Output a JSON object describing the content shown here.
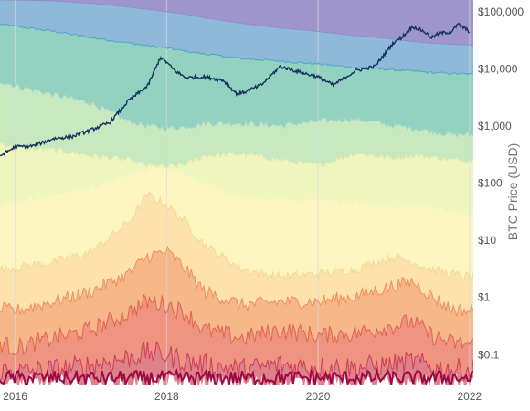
{
  "chart_data": {
    "type": "area",
    "title": "",
    "xlabel": "",
    "ylabel": "BTC Price (USD)",
    "y_scale": "log",
    "ylim": [
      0.03,
      160000
    ],
    "xlim": [
      2015.8,
      2022.05
    ],
    "grid": true,
    "legend": "none",
    "x_ticks": [
      {
        "value": 2016,
        "label": "2016"
      },
      {
        "value": 2018,
        "label": "2018"
      },
      {
        "value": 2020,
        "label": "2020"
      },
      {
        "value": 2022,
        "label": "2022"
      }
    ],
    "y_ticks": [
      {
        "value": 100000,
        "label": "$100,000"
      },
      {
        "value": 10000,
        "label": "$10,000"
      },
      {
        "value": 1000,
        "label": "$1,000"
      },
      {
        "value": 100,
        "label": "$100"
      },
      {
        "value": 10,
        "label": "$10"
      },
      {
        "value": 1,
        "label": "$1"
      },
      {
        "value": 0.1,
        "label": "$0.1"
      }
    ],
    "band_x": [
      2015.8,
      2016.0,
      2016.5,
      2017.0,
      2017.5,
      2017.75,
      2018.0,
      2018.25,
      2018.5,
      2019.0,
      2019.5,
      2020.0,
      2020.5,
      2021.0,
      2021.25,
      2021.5,
      2021.75,
      2022.0,
      2022.05
    ],
    "bands": [
      {
        "color": "#9e95cc",
        "upper": [
          160000,
          160000,
          160000,
          160000,
          160000,
          160000,
          160000,
          160000,
          160000,
          160000,
          160000,
          160000,
          160000,
          160000,
          160000,
          160000,
          160000,
          160000,
          160000
        ],
        "lower": [
          160000,
          160000,
          155000,
          140000,
          120000,
          110000,
          100000,
          90000,
          78000,
          62000,
          52000,
          45000,
          38000,
          33000,
          30000,
          28000,
          27000,
          26000,
          25500
        ]
      },
      {
        "color": "#8fb9d8",
        "upper": [
          160000,
          160000,
          155000,
          140000,
          120000,
          110000,
          100000,
          90000,
          78000,
          62000,
          52000,
          45000,
          38000,
          33000,
          30000,
          28000,
          27000,
          26000,
          25500
        ],
        "lower": [
          60000,
          55000,
          45000,
          35000,
          28000,
          25000,
          23000,
          20000,
          18000,
          15000,
          13500,
          12000,
          10500,
          9500,
          9000,
          8500,
          8200,
          8000,
          7900
        ]
      },
      {
        "color": "#93d1c0",
        "upper": [
          60000,
          55000,
          45000,
          35000,
          28000,
          25000,
          23000,
          20000,
          18000,
          15000,
          13500,
          12000,
          10500,
          9500,
          9000,
          8500,
          8200,
          8000,
          7900
        ],
        "lower": [
          6000,
          5000,
          3500,
          2500,
          1200,
          1000,
          900,
          950,
          1100,
          1100,
          1000,
          1200,
          1300,
          1000,
          900,
          800,
          700,
          700,
          700
        ]
      },
      {
        "color": "#c8e8c0",
        "upper": [
          6000,
          5000,
          3500,
          2500,
          1200,
          1000,
          900,
          950,
          1100,
          1100,
          1000,
          1200,
          1300,
          1000,
          900,
          800,
          700,
          700,
          700
        ],
        "lower": [
          500,
          400,
          380,
          300,
          250,
          200,
          190,
          210,
          300,
          320,
          250,
          200,
          330,
          270,
          300,
          280,
          250,
          250,
          250
        ]
      },
      {
        "color": "#eef5bd",
        "upper": [
          500,
          400,
          380,
          300,
          250,
          200,
          190,
          210,
          300,
          320,
          250,
          200,
          330,
          270,
          300,
          280,
          250,
          250,
          250
        ],
        "lower": [
          40,
          45,
          60,
          80,
          130,
          180,
          190,
          140,
          90,
          55,
          50,
          48,
          45,
          35,
          40,
          35,
          30,
          28,
          28
        ]
      },
      {
        "color": "#fdf5bf",
        "upper": [
          40,
          45,
          60,
          80,
          130,
          180,
          190,
          140,
          90,
          55,
          50,
          48,
          45,
          35,
          40,
          35,
          30,
          28,
          28
        ],
        "lower": [
          3,
          3.2,
          4,
          6,
          20,
          60,
          40,
          20,
          8,
          3,
          2.2,
          2.5,
          3,
          5,
          4,
          3,
          2.5,
          2.2,
          2.2
        ]
      },
      {
        "color": "#fde2ac",
        "upper": [
          3,
          3.2,
          4,
          6,
          20,
          60,
          40,
          20,
          8,
          3,
          2.2,
          2.5,
          3,
          5,
          4,
          3,
          2.5,
          2.2,
          2.2
        ],
        "lower": [
          0.6,
          0.55,
          0.8,
          1.2,
          2.5,
          5,
          6,
          3,
          1.2,
          0.7,
          0.8,
          0.8,
          1.0,
          1.5,
          1.8,
          1.0,
          0.6,
          0.55,
          0.55
        ]
      },
      {
        "color": "#f6b789",
        "upper": [
          0.6,
          0.55,
          0.8,
          1.2,
          2.5,
          5,
          6,
          3,
          1.2,
          0.7,
          0.8,
          0.8,
          1.0,
          1.5,
          1.8,
          1.0,
          0.6,
          0.55,
          0.55
        ],
        "lower": [
          0.15,
          0.12,
          0.18,
          0.25,
          0.5,
          0.8,
          0.7,
          0.5,
          0.25,
          0.18,
          0.25,
          0.2,
          0.22,
          0.3,
          0.35,
          0.2,
          0.15,
          0.14,
          0.14
        ]
      },
      {
        "color": "#ee9481",
        "upper": [
          0.15,
          0.12,
          0.18,
          0.25,
          0.5,
          0.8,
          0.7,
          0.5,
          0.25,
          0.18,
          0.25,
          0.2,
          0.22,
          0.3,
          0.35,
          0.2,
          0.15,
          0.14,
          0.14
        ],
        "lower": [
          0.05,
          0.045,
          0.05,
          0.06,
          0.08,
          0.1,
          0.09,
          0.07,
          0.06,
          0.05,
          0.06,
          0.055,
          0.055,
          0.06,
          0.07,
          0.055,
          0.05,
          0.05,
          0.05
        ]
      },
      {
        "color": "#dd8288",
        "upper": [
          0.05,
          0.045,
          0.05,
          0.06,
          0.08,
          0.1,
          0.09,
          0.07,
          0.06,
          0.05,
          0.06,
          0.055,
          0.055,
          0.06,
          0.07,
          0.055,
          0.05,
          0.05,
          0.05
        ],
        "lower": [
          0.03,
          0.03,
          0.03,
          0.03,
          0.03,
          0.03,
          0.03,
          0.03,
          0.03,
          0.03,
          0.03,
          0.03,
          0.03,
          0.03,
          0.03,
          0.03,
          0.03,
          0.03,
          0.03
        ]
      }
    ],
    "boundary_lines": [
      {
        "color": "#8f8fc8",
        "band": 0
      },
      {
        "color": "#4fa7c4",
        "band": 1
      },
      {
        "color": "#9fd5c3",
        "band": 2
      },
      {
        "color": "#dbe9b2",
        "band": 3
      },
      {
        "color": "#f3d997",
        "band": 5
      },
      {
        "color": "#ef8f5e",
        "band": 6
      },
      {
        "color": "#e06551",
        "band": 7
      },
      {
        "color": "#cf3b5c",
        "band": 8
      }
    ],
    "floor_line": {
      "color": "#9b0a45",
      "value": 0.035
    },
    "price_series": {
      "name": "",
      "color": "#14305c",
      "x": [
        2015.8,
        2016.0,
        2016.25,
        2016.5,
        2016.75,
        2017.0,
        2017.25,
        2017.5,
        2017.75,
        2017.92,
        2018.0,
        2018.1,
        2018.25,
        2018.5,
        2018.75,
        2018.92,
        2019.0,
        2019.25,
        2019.5,
        2019.75,
        2020.0,
        2020.2,
        2020.5,
        2020.75,
        2021.0,
        2021.1,
        2021.25,
        2021.4,
        2021.5,
        2021.6,
        2021.75,
        2021.85,
        2022.0
      ],
      "y": [
        300,
        430,
        450,
        600,
        650,
        850,
        1150,
        2800,
        5000,
        16000,
        13000,
        9500,
        7000,
        7200,
        6300,
        3700,
        3800,
        5200,
        11000,
        8800,
        7200,
        5200,
        9300,
        11000,
        29000,
        35000,
        55000,
        45000,
        35000,
        42000,
        44000,
        60000,
        45000
      ]
    }
  }
}
